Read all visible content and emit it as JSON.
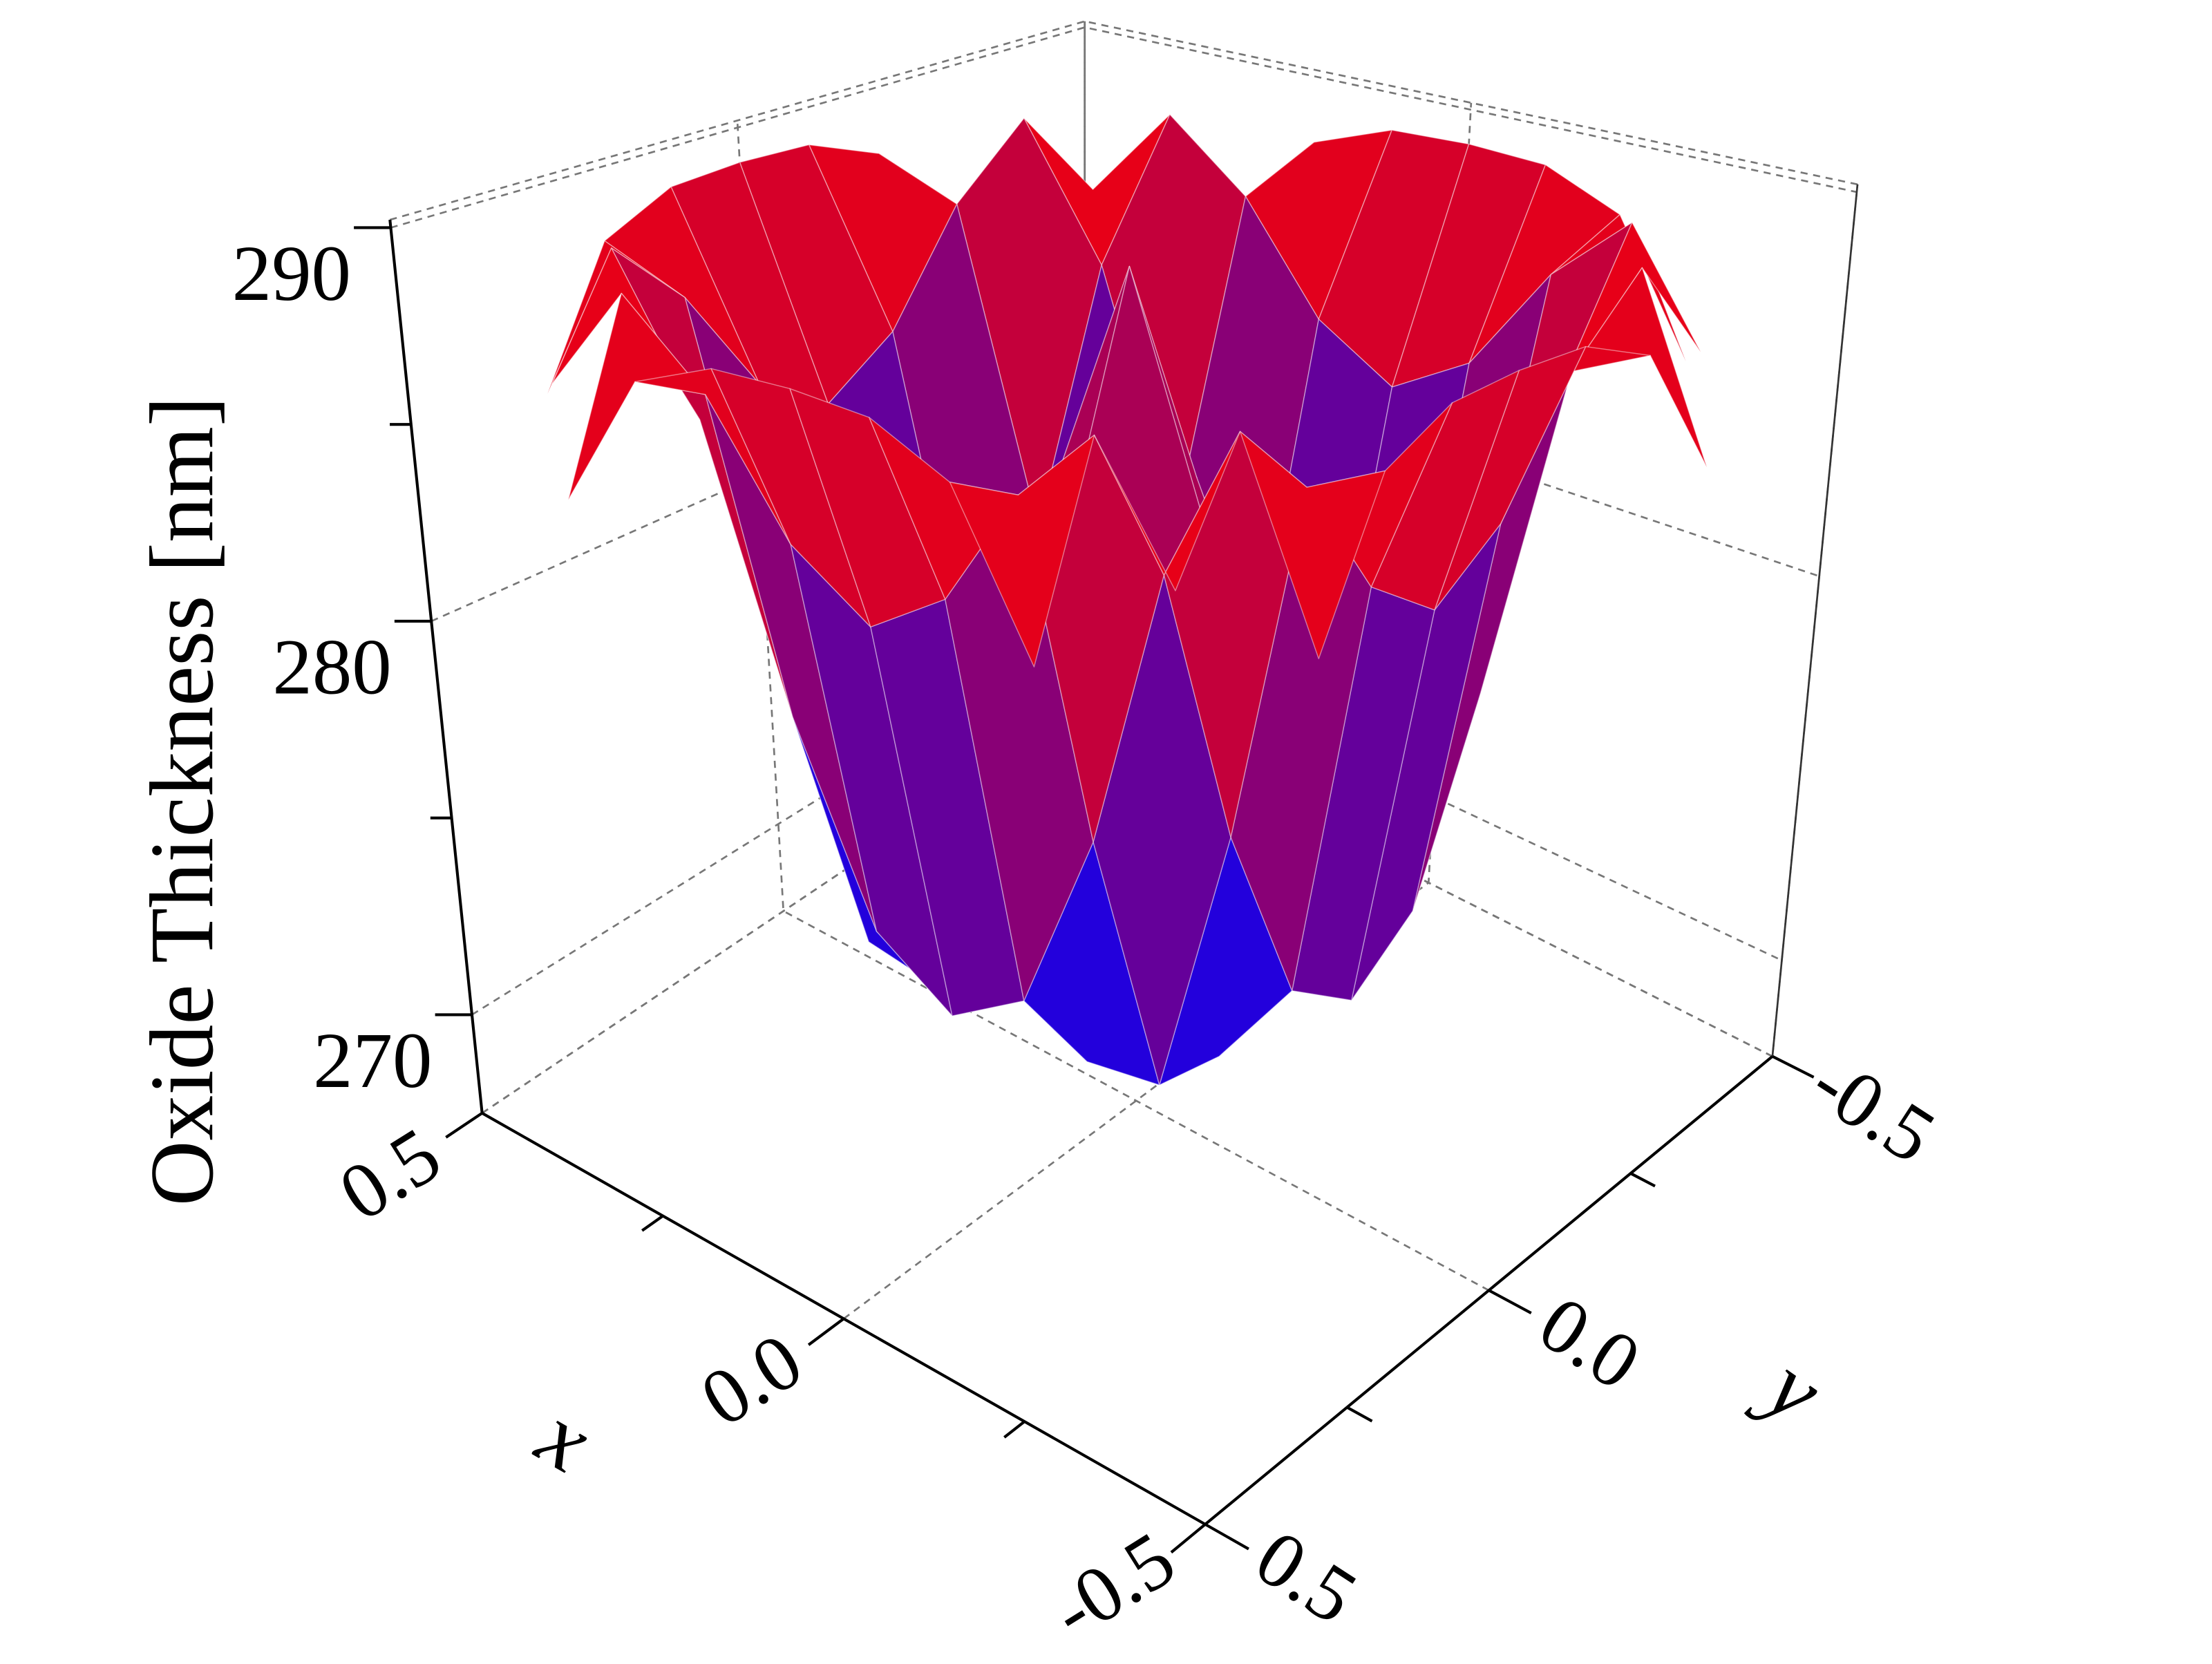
{
  "chart_data": {
    "type": "surface",
    "zlabel": "Oxide Thickness [nm]",
    "xlabel": "x",
    "ylabel": "y",
    "x": [
      -0.5,
      -0.4,
      -0.3,
      -0.2,
      -0.1,
      0,
      0.1,
      0.2,
      0.3,
      0.4,
      0.5
    ],
    "y": [
      -0.5,
      -0.4,
      -0.3,
      -0.2,
      -0.1,
      0,
      0.1,
      0.2,
      0.3,
      0.4,
      0.5
    ],
    "z": [
      [
        null,
        null,
        284.5,
        288.0,
        288.9,
        289,
        288.9,
        288.0,
        284.5,
        null,
        null
      ],
      [
        null,
        286.1,
        289,
        287.1,
        284.1,
        282.8,
        284.1,
        287.1,
        289,
        286.1,
        null
      ],
      [
        284.5,
        289,
        285.2,
        278.4,
        273.9,
        272.7,
        273.9,
        278.4,
        285.2,
        289,
        284.5
      ],
      [
        288.0,
        287.1,
        278.4,
        271.8,
        271.5,
        272.7,
        271.5,
        271.8,
        278.4,
        287.1,
        288.0
      ],
      [
        288.9,
        284.1,
        273.9,
        271.5,
        278.2,
        282.8,
        278.2,
        271.5,
        273.9,
        284.1,
        288.9
      ],
      [
        289,
        282.8,
        272.7,
        272.7,
        282.8,
        289,
        282.8,
        272.7,
        272.7,
        282.8,
        289
      ],
      [
        288.9,
        284.1,
        273.9,
        271.5,
        278.2,
        282.8,
        278.2,
        271.5,
        273.9,
        284.1,
        288.9
      ],
      [
        288.0,
        287.1,
        278.4,
        271.8,
        271.5,
        272.7,
        271.5,
        271.8,
        278.4,
        287.1,
        288.0
      ],
      [
        284.5,
        289,
        285.2,
        278.4,
        273.9,
        272.7,
        273.9,
        278.4,
        285.2,
        289,
        284.5
      ],
      [
        null,
        286.1,
        289,
        287.1,
        284.1,
        282.8,
        284.1,
        287.1,
        289,
        286.1,
        null
      ],
      [
        null,
        null,
        284.5,
        288.0,
        288.9,
        289,
        288.9,
        288.0,
        284.5,
        null,
        null
      ]
    ],
    "xlim": [
      -0.5,
      0.5
    ],
    "ylim": [
      -0.5,
      0.5
    ],
    "zlim": [
      267.5,
      290.2
    ],
    "xticks": [
      -0.5,
      {
        "value": 0,
        "label": "0.0"
      },
      0.5
    ],
    "xminorticks": [
      -0.25,
      0.25
    ],
    "yticks": [
      -0.5,
      {
        "value": 0,
        "label": "0.0"
      },
      0.5
    ],
    "yminorticks": [
      -0.25,
      0.25
    ],
    "zticks": [
      270,
      280,
      290
    ],
    "zminorticks": [
      275,
      285
    ],
    "colormap": [
      "#0000ff",
      "#ff0000"
    ],
    "grid": true
  }
}
